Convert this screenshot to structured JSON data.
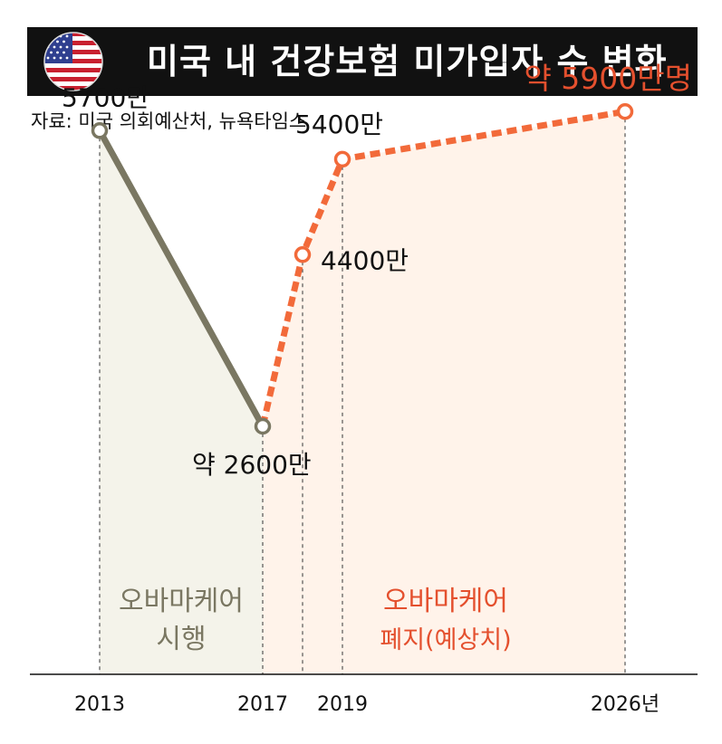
{
  "header": {
    "title": "미국 내 건강보험 미가입자 수 변화",
    "flag_icon": "us-flag-icon"
  },
  "source": "자료: 미국 의회예산처, 뉴욕타임스",
  "colors": {
    "actual": "#7a7762",
    "projected": "#f26a3a",
    "actual_fill": "#f4f3ea",
    "projected_fill": "#fff3ea",
    "projected_label": "#e4502e",
    "title_bg": "#111111"
  },
  "chart_data": {
    "type": "line",
    "series": [
      {
        "style": "solid",
        "points": [
          {
            "x": 2013,
            "y": 5700,
            "label": "5700만"
          },
          {
            "x": 2017,
            "y": 2600,
            "label": "약 2600만"
          }
        ]
      },
      {
        "style": "dashed",
        "points": [
          {
            "x": 2017,
            "y": 2600,
            "label": ""
          },
          {
            "x": 2018,
            "y": 4400,
            "label": "4400만"
          },
          {
            "x": 2019,
            "y": 5400,
            "label": "5400만"
          },
          {
            "x": 2026,
            "y": 5900,
            "label": "약 5900만명"
          }
        ]
      }
    ],
    "x_ticks": [
      {
        "x": 2013,
        "label": "2013"
      },
      {
        "x": 2017,
        "label": "2017"
      },
      {
        "x": 2018,
        "label": ""
      },
      {
        "x": 2019,
        "label": "2019"
      },
      {
        "x": 2026,
        "label": "2026년"
      }
    ],
    "regions": [
      {
        "from": 2013,
        "to": 2017,
        "lines": [
          "오바마케어",
          "시행"
        ],
        "kind": "actual"
      },
      {
        "from": 2017,
        "to": 2026,
        "lines": [
          "오바마케어",
          "폐지(예상치)"
        ],
        "kind": "projected"
      }
    ],
    "ylim": [
      0,
      6500
    ]
  }
}
